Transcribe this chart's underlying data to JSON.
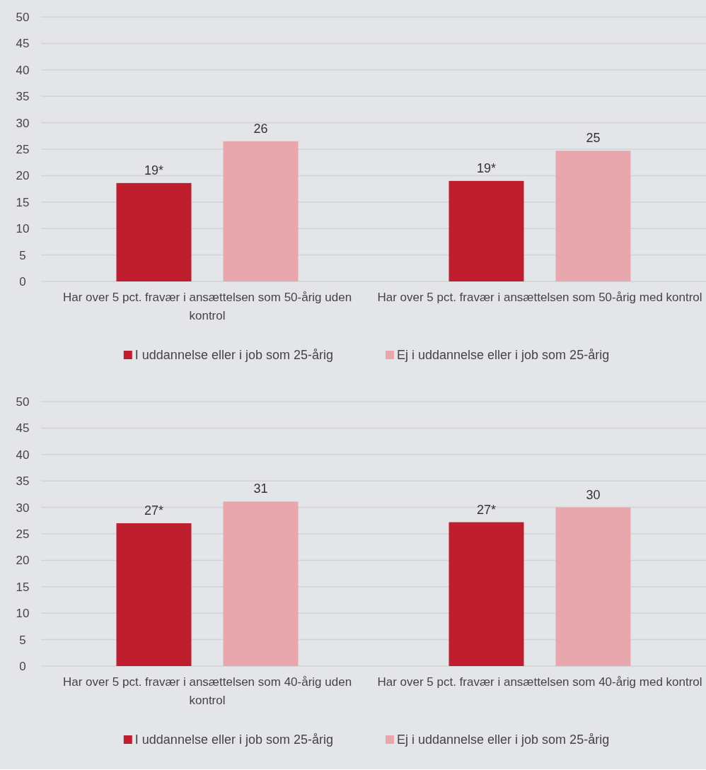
{
  "chart_data": [
    {
      "type": "bar",
      "categories": [
        "Har over 5 pct. fravær i ansættelsen som 50-årig uden kontrol",
        "Har over 5 pct. fravær i ansættelsen som 50-årig med kontrol"
      ],
      "series": [
        {
          "name": "I uddannelse eller i job som 25-årig",
          "color": "#be1e2d",
          "values": [
            18.6,
            19.0
          ],
          "value_labels": [
            "19*",
            "19*"
          ]
        },
        {
          "name": "Ej i uddannelse eller i job som 25-årig",
          "color": "#e8a7ad",
          "values": [
            26.5,
            24.7
          ],
          "value_labels": [
            "26",
            "25"
          ]
        }
      ],
      "ylim": [
        0,
        50
      ],
      "yticks": [
        0,
        5,
        10,
        15,
        20,
        25,
        30,
        35,
        40,
        45,
        50
      ],
      "grid": "y",
      "legend": "bottom"
    },
    {
      "type": "bar",
      "categories": [
        "Har over 5 pct. fravær i ansættelsen som 40-årig uden kontrol",
        "Har over 5 pct. fravær i ansættelsen som 40-årig med kontrol"
      ],
      "series": [
        {
          "name": "I uddannelse eller i job som 25-årig",
          "color": "#be1e2d",
          "values": [
            27.0,
            27.2
          ],
          "value_labels": [
            "27*",
            "27*"
          ]
        },
        {
          "name": "Ej i uddannelse eller i job som 25-årig",
          "color": "#e8a7ad",
          "values": [
            31.1,
            30.0
          ],
          "value_labels": [
            "31",
            "30"
          ]
        }
      ],
      "ylim": [
        0,
        50
      ],
      "yticks": [
        0,
        5,
        10,
        15,
        20,
        25,
        30,
        35,
        40,
        45,
        50
      ],
      "grid": "y",
      "legend": "bottom"
    }
  ]
}
